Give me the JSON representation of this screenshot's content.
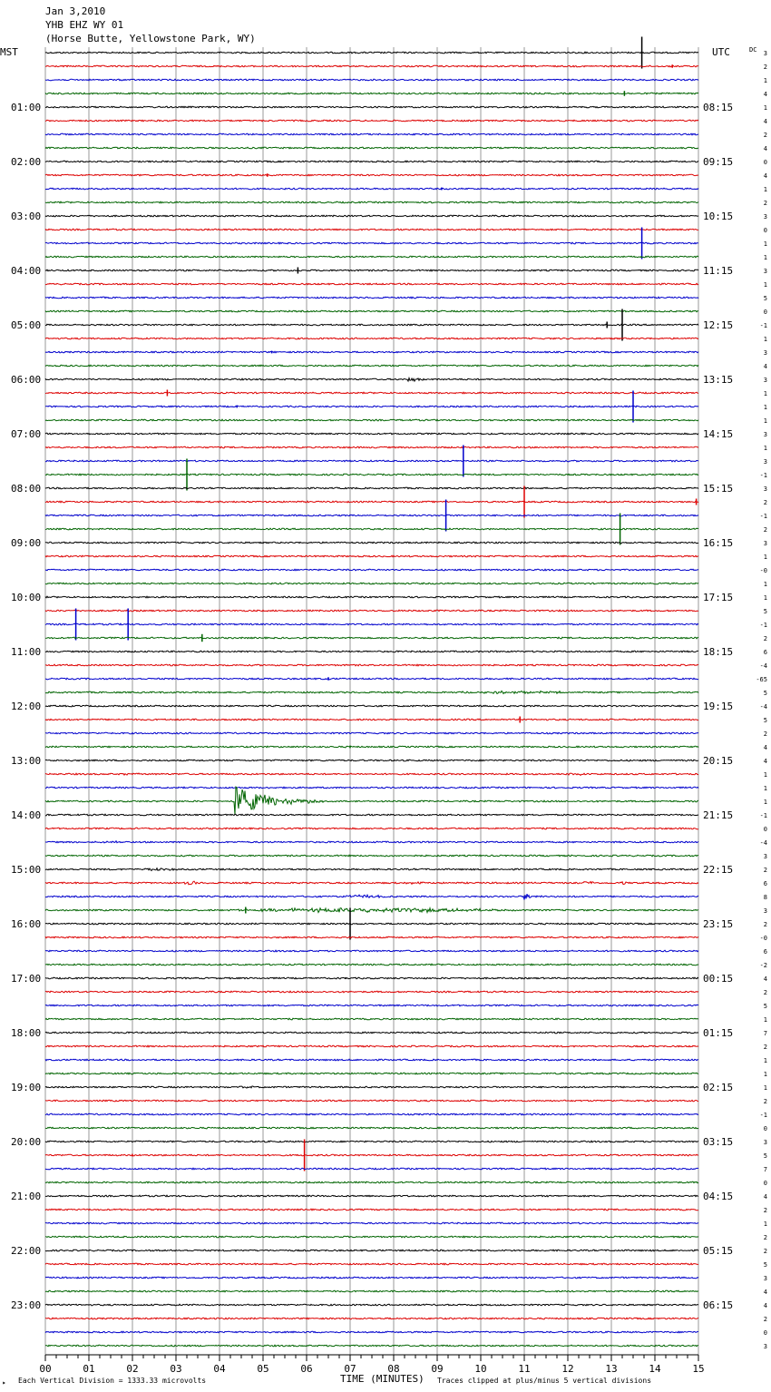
{
  "header": {
    "date": "Jan 3,2010",
    "station": "YHB EHZ WY 01",
    "location": "(Horse Butte, Yellowstone Park, WY)"
  },
  "left_label": "MST",
  "right_label": "UTC",
  "dc_label": "DC",
  "footer": {
    "scale": "Each Vertical Division = 1333.33 microvolts",
    "xlabel": "TIME (MINUTES)",
    "clip_note": "Traces clipped at plus/minus 5 vertical divisions"
  },
  "trace_colors": [
    "#000000",
    "#dd0000",
    "#0000cc",
    "#006400"
  ],
  "chart_data": {
    "type": "line",
    "title": "YHB EHZ WY 01",
    "xlabel": "TIME (MINUTES)",
    "xlim": [
      0,
      15
    ],
    "x_ticks": [
      "00",
      "01",
      "02",
      "03",
      "04",
      "05",
      "06",
      "07",
      "08",
      "09",
      "10",
      "11",
      "12",
      "13",
      "14",
      "15"
    ],
    "traces_per_hour": 4,
    "trace_minutes": 15,
    "hours_mst": [
      "01:00",
      "02:00",
      "03:00",
      "04:00",
      "05:00",
      "06:00",
      "07:00",
      "08:00",
      "09:00",
      "10:00",
      "11:00",
      "12:00",
      "13:00",
      "14:00",
      "15:00",
      "16:00",
      "17:00",
      "18:00",
      "19:00",
      "20:00",
      "21:00",
      "22:00",
      "23:00"
    ],
    "hours_utc": [
      "08:15",
      "09:15",
      "10:15",
      "11:15",
      "12:15",
      "13:15",
      "14:15",
      "15:15",
      "16:15",
      "17:15",
      "18:15",
      "19:15",
      "20:15",
      "21:15",
      "22:15",
      "23:15",
      "00:15",
      "01:15",
      "02:15",
      "03:15",
      "04:15",
      "05:15",
      "06:15"
    ],
    "dc_offsets": [
      "3",
      "2",
      "1",
      "4",
      "1",
      "4",
      "2",
      "4",
      "0",
      "4",
      "1",
      "2",
      "3",
      "0",
      "1",
      "1",
      "3",
      "1",
      "5",
      "0",
      "-1",
      "1",
      "3",
      "4",
      "3",
      "1",
      "1",
      "1",
      "3",
      "1",
      "3",
      "-1",
      "3",
      "2",
      "-1",
      "2",
      "3",
      "1",
      "-0",
      "1",
      "1",
      "5",
      "-1",
      "2",
      "6",
      "-4",
      "-65",
      "5",
      "-4",
      "5",
      "2",
      "4",
      "4",
      "1",
      "1",
      "1",
      "-1",
      "0",
      "-4",
      "3",
      "2",
      "6",
      "8",
      "3",
      "2",
      "-0",
      "6",
      "-2",
      "4",
      "2",
      "5",
      "1",
      "7",
      "2",
      "1",
      "1",
      "1",
      "2",
      "-1",
      "0",
      "3",
      "5",
      "7",
      "0",
      "4",
      "2",
      "1",
      "2",
      "2",
      "5",
      "3",
      "4",
      "4",
      "2",
      "0",
      "3"
    ],
    "events": [
      {
        "trace": 0,
        "minute": 13.7,
        "amp": 5,
        "kind": "spike"
      },
      {
        "trace": 1,
        "minute": 14.4,
        "amp": 0.5,
        "kind": "spike"
      },
      {
        "trace": 3,
        "minute": 13.3,
        "amp": 0.8,
        "kind": "spike"
      },
      {
        "trace": 9,
        "minute": 5.1,
        "amp": 0.5,
        "kind": "spike"
      },
      {
        "trace": 10,
        "minute": 9.1,
        "amp": 0.4,
        "kind": "spike"
      },
      {
        "trace": 14,
        "minute": 13.7,
        "amp": 5,
        "kind": "spike"
      },
      {
        "trace": 16,
        "minute": 5.8,
        "amp": 1,
        "kind": "spike"
      },
      {
        "trace": 20,
        "minute": 12.9,
        "amp": 1,
        "kind": "spike"
      },
      {
        "trace": 20,
        "minute": 13.25,
        "amp": 5,
        "kind": "spike"
      },
      {
        "trace": 22,
        "minute": 5.2,
        "amp": 0.4,
        "kind": "spike"
      },
      {
        "trace": 24,
        "minute": 8.3,
        "amp": 1.5,
        "kind": "quake",
        "dur": 0.8
      },
      {
        "trace": 25,
        "minute": 2.8,
        "amp": 1,
        "kind": "spike"
      },
      {
        "trace": 26,
        "minute": 4.4,
        "amp": 0.4,
        "kind": "spike"
      },
      {
        "trace": 26,
        "minute": 13.5,
        "amp": 5,
        "kind": "spike"
      },
      {
        "trace": 30,
        "minute": 9.6,
        "amp": 5,
        "kind": "spike"
      },
      {
        "trace": 31,
        "minute": 3.25,
        "amp": 5,
        "kind": "spike"
      },
      {
        "trace": 33,
        "minute": 11.0,
        "amp": 5,
        "kind": "spike"
      },
      {
        "trace": 33,
        "minute": 14.95,
        "amp": 1,
        "kind": "spike"
      },
      {
        "trace": 34,
        "minute": 9.2,
        "amp": 5,
        "kind": "spike"
      },
      {
        "trace": 35,
        "minute": 13.2,
        "amp": 5,
        "kind": "spike"
      },
      {
        "trace": 42,
        "minute": 0.7,
        "amp": 5,
        "kind": "spike"
      },
      {
        "trace": 42,
        "minute": 1.9,
        "amp": 5,
        "kind": "spike"
      },
      {
        "trace": 43,
        "minute": 3.6,
        "amp": 1.2,
        "kind": "spike"
      },
      {
        "trace": 46,
        "minute": 6.5,
        "amp": 0.5,
        "kind": "spike"
      },
      {
        "trace": 47,
        "minute": 9.2,
        "amp": 0.3,
        "kind": "noise",
        "dur": 3.5
      },
      {
        "trace": 49,
        "minute": 10.9,
        "amp": 1,
        "kind": "spike"
      },
      {
        "trace": 51,
        "minute": 7.0,
        "amp": 0.4,
        "kind": "spike"
      },
      {
        "trace": 53,
        "minute": 1.7,
        "amp": 0.2,
        "kind": "noise",
        "dur": 0.5
      },
      {
        "trace": 53,
        "minute": 11.9,
        "amp": 0.3,
        "kind": "noise",
        "dur": 0.6
      },
      {
        "trace": 55,
        "minute": 4.35,
        "amp": 5,
        "kind": "quake",
        "dur": 3.5
      },
      {
        "trace": 58,
        "minute": 0.8,
        "amp": 0.2,
        "kind": "noise",
        "dur": 1.2
      },
      {
        "trace": 60,
        "minute": 1.8,
        "amp": 0.25,
        "kind": "noise",
        "dur": 1.5
      },
      {
        "trace": 61,
        "minute": 3.1,
        "amp": 0.6,
        "kind": "noise",
        "dur": 0.4
      },
      {
        "trace": 61,
        "minute": 8.2,
        "amp": 0.3,
        "kind": "noise",
        "dur": 0.6
      },
      {
        "trace": 61,
        "minute": 12.3,
        "amp": 0.5,
        "kind": "noise",
        "dur": 0.4
      },
      {
        "trace": 61,
        "minute": 13.1,
        "amp": 0.3,
        "kind": "noise",
        "dur": 0.4
      },
      {
        "trace": 62,
        "minute": 6.7,
        "amp": 0.4,
        "kind": "noise",
        "dur": 1.2
      },
      {
        "trace": 62,
        "minute": 11.0,
        "amp": 1.2,
        "kind": "quake",
        "dur": 0.8
      },
      {
        "trace": 63,
        "minute": 4.0,
        "amp": 0.6,
        "kind": "noise",
        "dur": 7.0
      },
      {
        "trace": 63,
        "minute": 4.6,
        "amp": 1,
        "kind": "spike"
      },
      {
        "trace": 64,
        "minute": 7.0,
        "amp": 5,
        "kind": "spike"
      },
      {
        "trace": 68,
        "minute": 6.9,
        "amp": 0.3,
        "kind": "spike"
      },
      {
        "trace": 76,
        "minute": 4.4,
        "amp": 0.3,
        "kind": "noise",
        "dur": 0.5
      },
      {
        "trace": 81,
        "minute": 2.0,
        "amp": 0.4,
        "kind": "spike"
      },
      {
        "trace": 81,
        "minute": 5.95,
        "amp": 5,
        "kind": "spike"
      }
    ]
  }
}
